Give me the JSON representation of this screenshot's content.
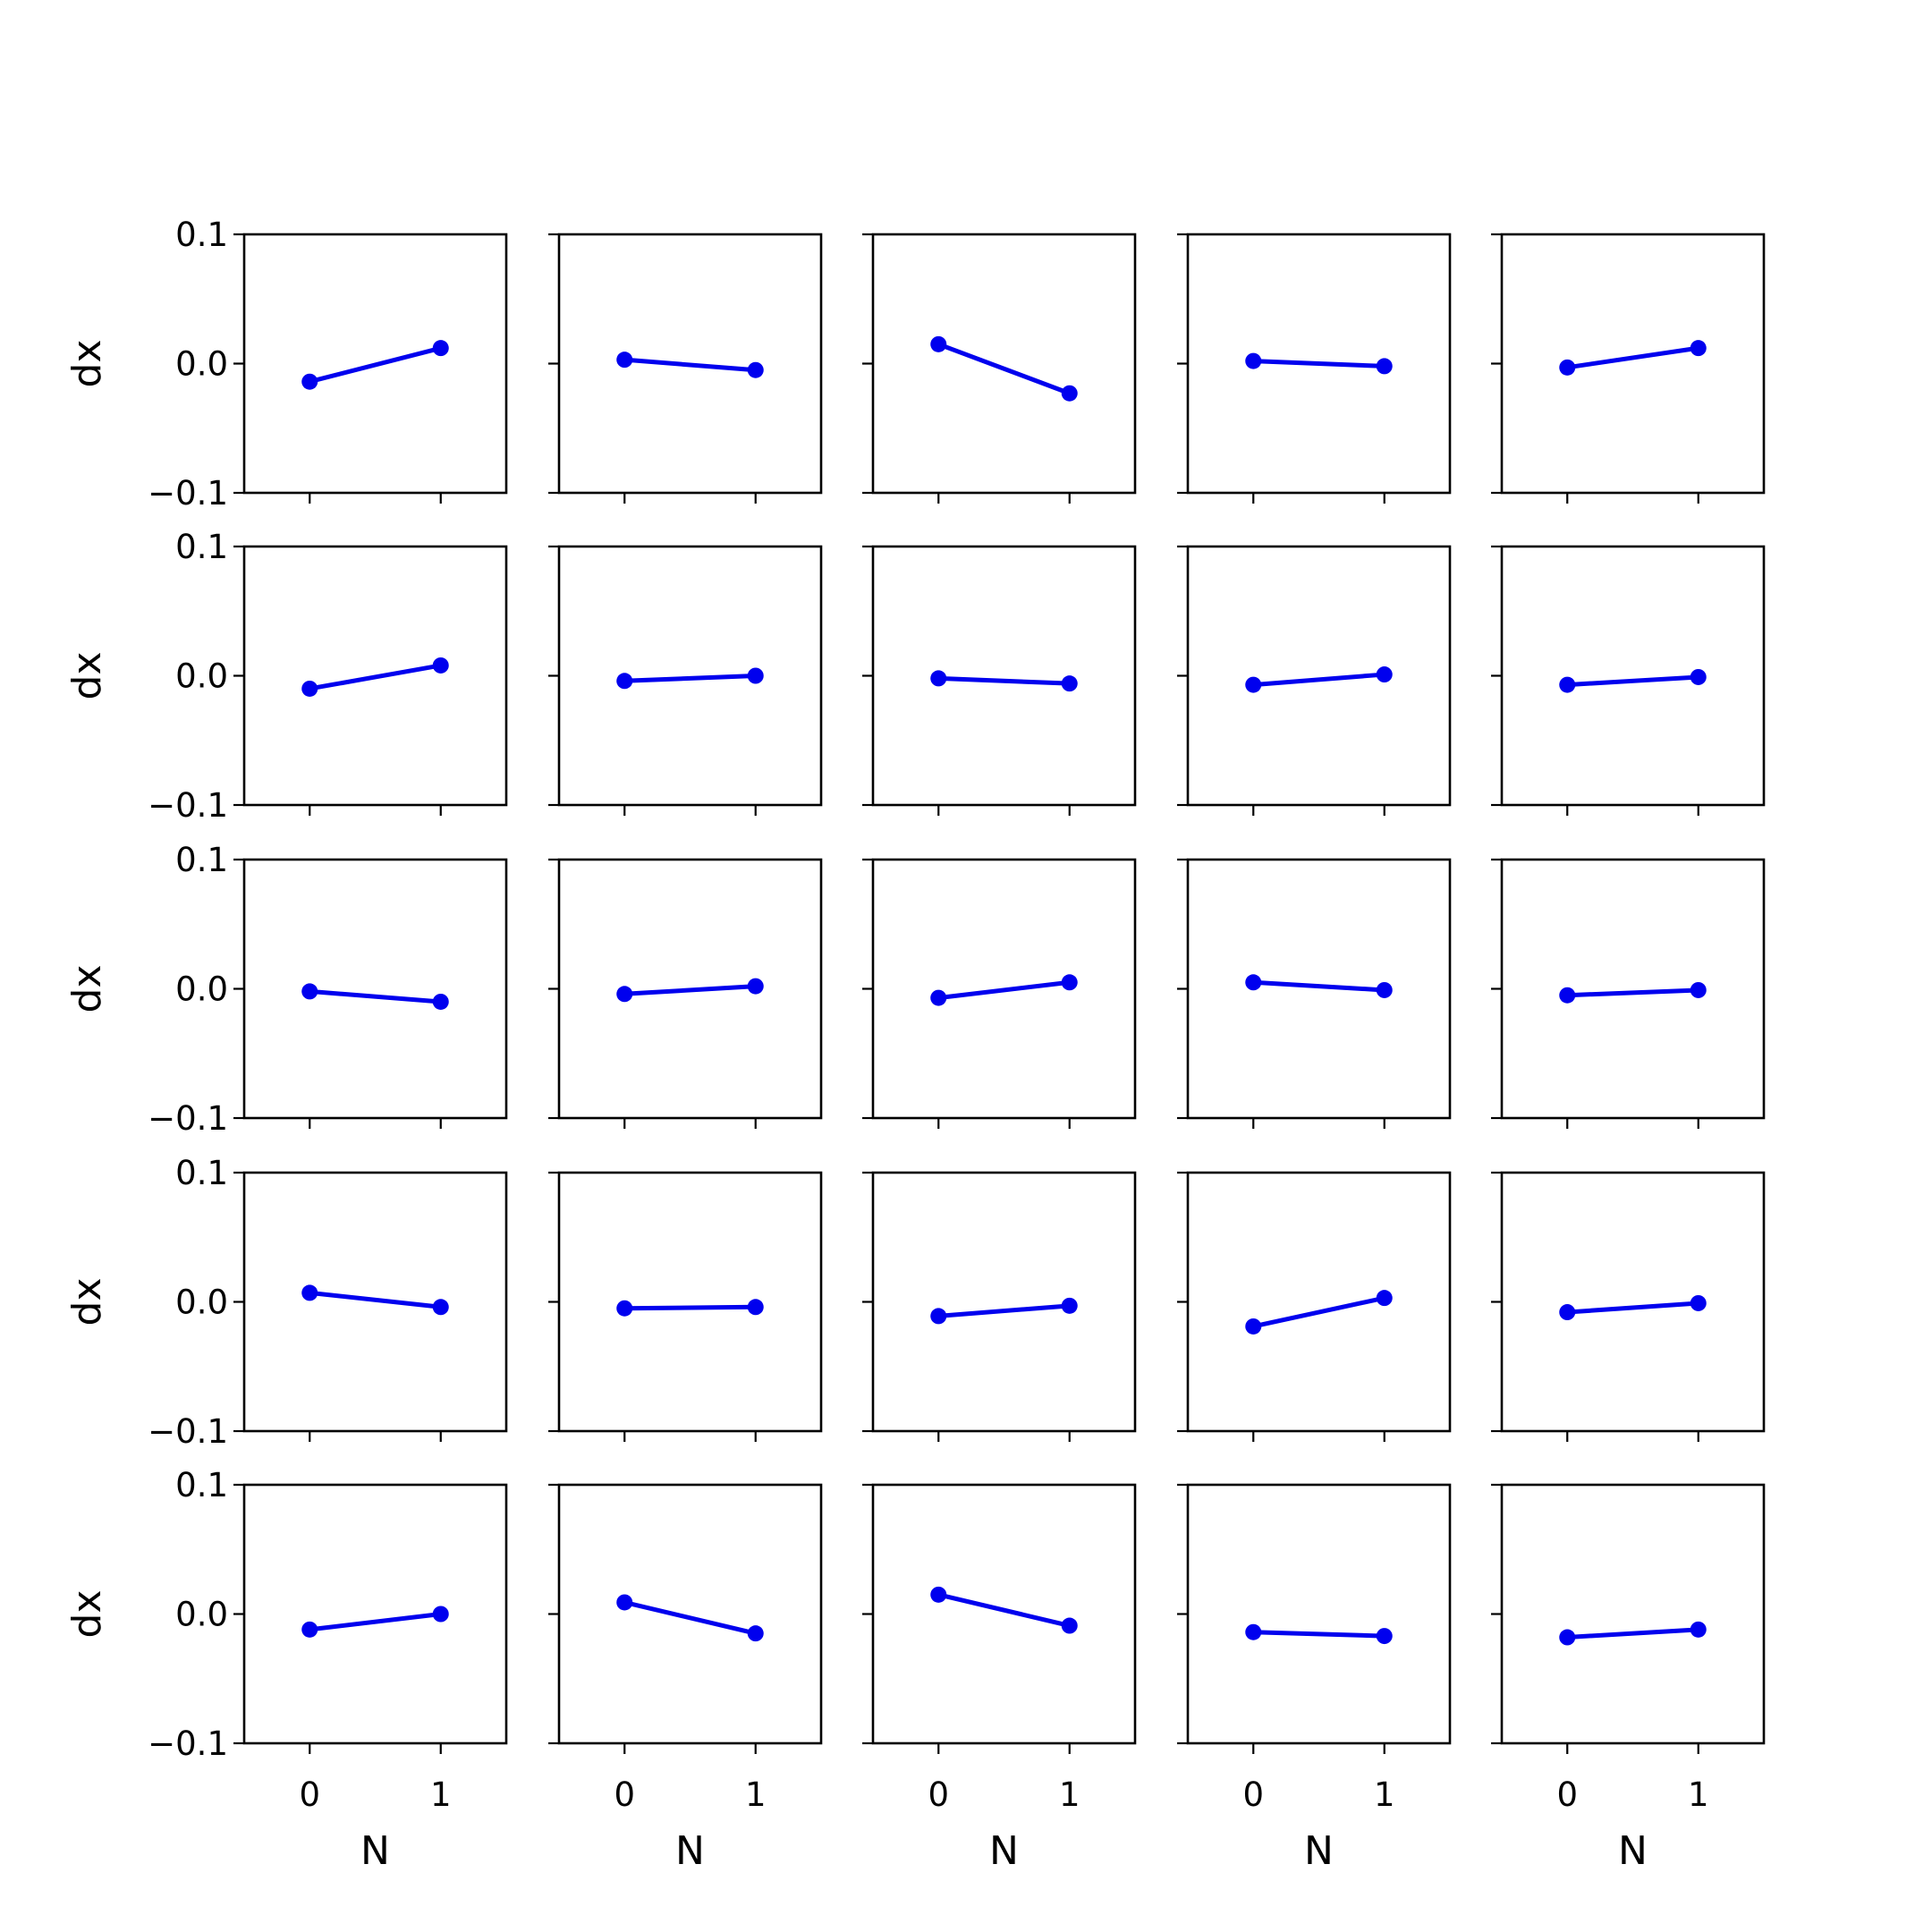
{
  "chart_data": {
    "type": "line",
    "layout": {
      "rows": 5,
      "cols": 5
    },
    "xlabel": "N",
    "ylabel": "dx",
    "xticks": [
      "0",
      "1"
    ],
    "yticks": [
      "0.1",
      "0.0",
      "−0.1"
    ],
    "ytick_values": [
      0.1,
      0.0,
      -0.1
    ],
    "ylim": [
      -0.1,
      0.1
    ],
    "xlim": [
      -0.5,
      1.5
    ],
    "x": [
      0,
      1
    ],
    "line_color": "#0000ee",
    "grid": false,
    "panels": [
      [
        0,
        0,
        [
          -0.014,
          0.012
        ]
      ],
      [
        0,
        1,
        [
          0.003,
          -0.005
        ]
      ],
      [
        0,
        2,
        [
          0.015,
          -0.023
        ]
      ],
      [
        0,
        3,
        [
          0.002,
          -0.002
        ]
      ],
      [
        0,
        4,
        [
          -0.003,
          0.012
        ]
      ],
      [
        1,
        0,
        [
          -0.01,
          0.008
        ]
      ],
      [
        1,
        1,
        [
          -0.004,
          0.0
        ]
      ],
      [
        1,
        2,
        [
          -0.002,
          -0.006
        ]
      ],
      [
        1,
        3,
        [
          -0.007,
          0.001
        ]
      ],
      [
        1,
        4,
        [
          -0.007,
          -0.001
        ]
      ],
      [
        2,
        0,
        [
          -0.002,
          -0.01
        ]
      ],
      [
        2,
        1,
        [
          -0.004,
          0.002
        ]
      ],
      [
        2,
        2,
        [
          -0.007,
          0.005
        ]
      ],
      [
        2,
        3,
        [
          0.005,
          -0.001
        ]
      ],
      [
        2,
        4,
        [
          -0.005,
          -0.001
        ]
      ],
      [
        3,
        0,
        [
          0.007,
          -0.004
        ]
      ],
      [
        3,
        1,
        [
          -0.005,
          -0.004
        ]
      ],
      [
        3,
        2,
        [
          -0.011,
          -0.003
        ]
      ],
      [
        3,
        3,
        [
          -0.019,
          0.003
        ]
      ],
      [
        3,
        4,
        [
          -0.008,
          -0.001
        ]
      ],
      [
        4,
        0,
        [
          -0.012,
          0.0
        ]
      ],
      [
        4,
        1,
        [
          0.009,
          -0.015
        ]
      ],
      [
        4,
        2,
        [
          0.015,
          -0.009
        ]
      ],
      [
        4,
        3,
        [
          -0.014,
          -0.017
        ]
      ],
      [
        4,
        4,
        [
          -0.018,
          -0.012
        ]
      ]
    ]
  }
}
